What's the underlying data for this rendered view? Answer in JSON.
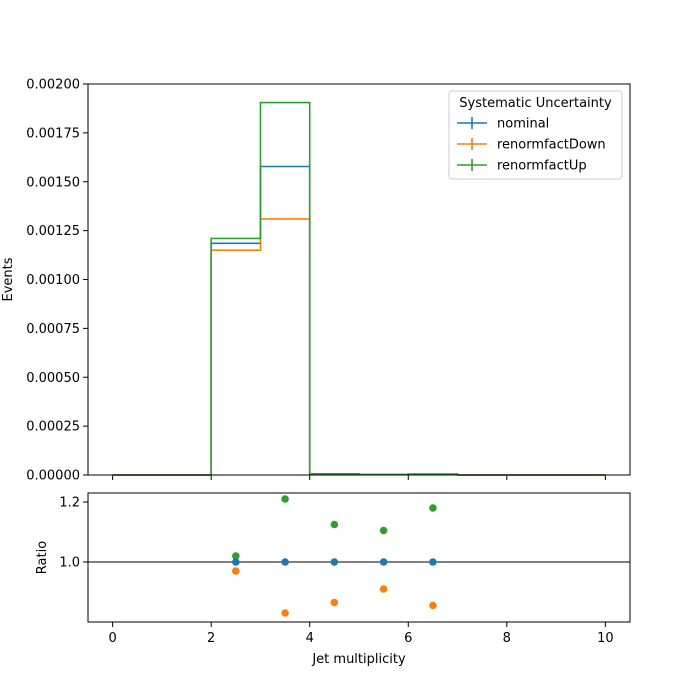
{
  "chart_data": {
    "type": "histogram",
    "xlabel": "Jet multiplicity",
    "ylabel": "Events",
    "ylim": [
      0,
      0.002
    ],
    "xlim": [
      -0.5,
      10.5
    ],
    "bin_edges": [
      0,
      1,
      2,
      3,
      4,
      5,
      6,
      7,
      8,
      9,
      10
    ],
    "y_ticks": [
      0.0,
      0.00025,
      0.0005,
      0.00075,
      0.001,
      0.00125,
      0.0015,
      0.00175,
      0.002
    ],
    "y_tick_labels": [
      "0.00000",
      "0.00025",
      "0.00050",
      "0.00075",
      "0.00100",
      "0.00125",
      "0.00150",
      "0.00175",
      "0.00200"
    ],
    "x_ticks": [
      0,
      2,
      4,
      6,
      8,
      10
    ],
    "x_tick_labels": [
      "0",
      "2",
      "4",
      "6",
      "8",
      "10"
    ],
    "legend": {
      "title": "Systematic Uncertainty",
      "placement": "top-right"
    },
    "series": [
      {
        "name": "nominal",
        "color": "#1f77b4",
        "values": [
          0,
          0,
          0.001185,
          0.001578,
          5e-06,
          2e-06,
          4e-06,
          0,
          0,
          0
        ]
      },
      {
        "name": "renormfactDown",
        "color": "#ff7f0e",
        "values": [
          0,
          0,
          0.00115,
          0.00131,
          4e-06,
          2e-06,
          3e-06,
          0,
          0,
          0
        ]
      },
      {
        "name": "renormfactUp",
        "color": "#2ca02c",
        "values": [
          0,
          0,
          0.00121,
          0.001905,
          6e-06,
          2e-06,
          5e-06,
          0,
          0,
          0
        ]
      }
    ],
    "ratio": {
      "ylabel": "Ratio",
      "ylim": [
        0.8,
        1.23
      ],
      "y_ticks": [
        1.0,
        1.2
      ],
      "y_tick_labels": [
        "1.0",
        "1.2"
      ],
      "reference_line": 1.0,
      "x": [
        2.5,
        3.5,
        4.5,
        5.5,
        6.5
      ],
      "series": [
        {
          "name": "nominal",
          "color": "#1f77b4",
          "values": [
            1.0,
            1.0,
            1.0,
            1.0,
            1.0
          ]
        },
        {
          "name": "renormfactDown",
          "color": "#ff7f0e",
          "values": [
            0.97,
            0.83,
            0.865,
            0.91,
            0.855
          ]
        },
        {
          "name": "renormfactUp",
          "color": "#2ca02c",
          "values": [
            1.02,
            1.21,
            1.125,
            1.105,
            1.18
          ]
        }
      ]
    }
  }
}
